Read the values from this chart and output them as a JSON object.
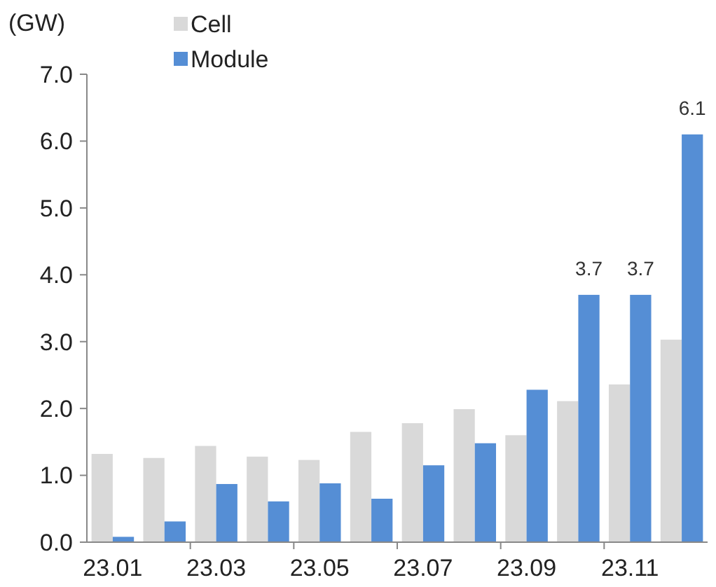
{
  "chart_data": {
    "type": "bar",
    "ylabel": "(GW)",
    "categories": [
      "23.01",
      null,
      "23.03",
      null,
      "23.05",
      null,
      "23.07",
      null,
      "23.09",
      null,
      "23.11",
      null
    ],
    "series": [
      {
        "name": "Cell",
        "color": "#d9d9d9",
        "values": [
          1.32,
          1.26,
          1.44,
          1.28,
          1.23,
          1.65,
          1.78,
          1.99,
          1.6,
          2.11,
          2.36,
          3.03
        ]
      },
      {
        "name": "Module",
        "color": "#558ed5",
        "values": [
          0.08,
          0.31,
          0.87,
          0.61,
          0.88,
          0.65,
          1.15,
          1.48,
          2.28,
          3.7,
          3.7,
          6.1
        ],
        "value_labels": [
          null,
          null,
          null,
          null,
          null,
          null,
          null,
          null,
          null,
          "3.7",
          "3.7",
          "6.1"
        ]
      }
    ],
    "ylim": [
      0,
      7
    ],
    "yticks": [
      {
        "value": 0,
        "label": "0.0"
      },
      {
        "value": 1,
        "label": "1.0"
      },
      {
        "value": 2,
        "label": "2.0"
      },
      {
        "value": 3,
        "label": "3.0"
      },
      {
        "value": 4,
        "label": "4.0"
      },
      {
        "value": 5,
        "label": "5.0"
      },
      {
        "value": 6,
        "label": "6.0"
      },
      {
        "value": 7,
        "label": "7.0"
      }
    ],
    "legend": "top",
    "grid": false
  }
}
